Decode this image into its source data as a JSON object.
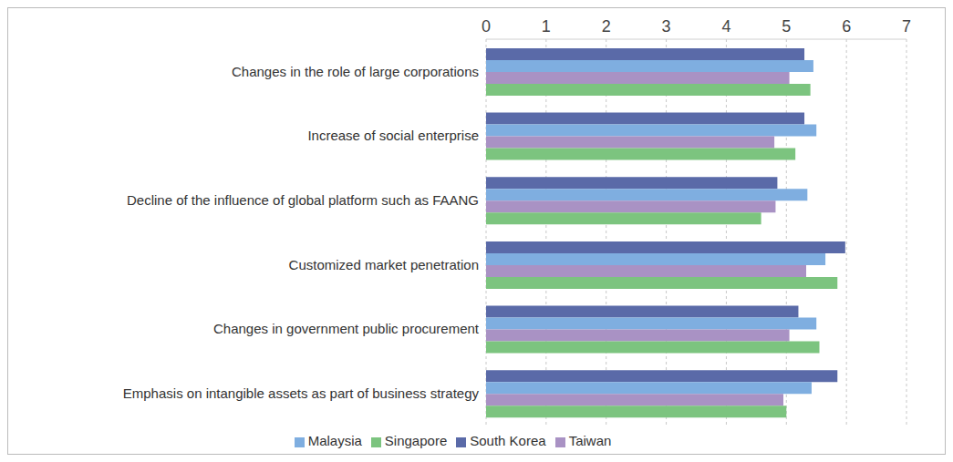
{
  "chart_data": {
    "type": "bar",
    "orientation": "horizontal",
    "categories": [
      "Changes in the role of large corporations",
      "Increase of social enterprise",
      "Decline of the influence of global platform such as FAANG",
      "Customized market penetration",
      "Changes in government public procurement",
      "Emphasis on intangible assets as part of business strategy"
    ],
    "series": [
      {
        "name": "South Korea",
        "color": "#5a6aa8",
        "values": [
          5.3,
          5.3,
          4.85,
          5.98,
          5.2,
          5.85
        ]
      },
      {
        "name": "Malaysia",
        "color": "#7faee0",
        "values": [
          5.45,
          5.5,
          5.35,
          5.65,
          5.5,
          5.42
        ]
      },
      {
        "name": "Taiwan",
        "color": "#a992c4",
        "values": [
          5.05,
          4.8,
          4.82,
          5.33,
          5.05,
          4.95
        ]
      },
      {
        "name": "Singapore",
        "color": "#7cc47f",
        "values": [
          5.4,
          5.15,
          4.58,
          5.85,
          5.55,
          5.0
        ]
      }
    ],
    "xlim": [
      0,
      7
    ],
    "xticks": [
      0,
      1,
      2,
      3,
      4,
      5,
      6,
      7
    ],
    "grid": true,
    "legend": "bottom"
  }
}
